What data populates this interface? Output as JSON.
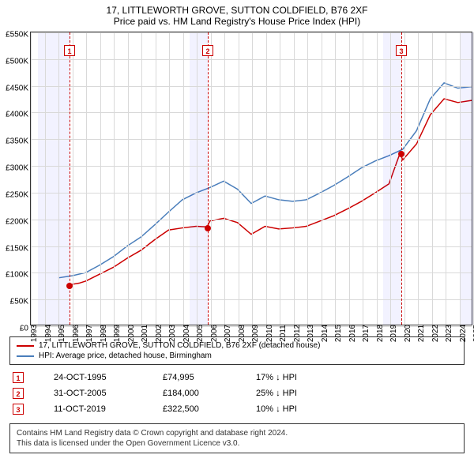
{
  "title": "17, LITTLEWORTH GROVE, SUTTON COLDFIELD, B76 2XF",
  "subtitle": "Price paid vs. HM Land Registry's House Price Index (HPI)",
  "chart": {
    "type": "line",
    "ylim": [
      0,
      550000
    ],
    "ytick_step": 50000,
    "ytick_labels": [
      "£0",
      "£50K",
      "£100K",
      "£150K",
      "£200K",
      "£250K",
      "£300K",
      "£350K",
      "£400K",
      "£450K",
      "£500K",
      "£550K"
    ],
    "xlim": [
      1993,
      2025
    ],
    "xticks": [
      1993,
      1994,
      1995,
      1996,
      1997,
      1998,
      1999,
      2000,
      2001,
      2002,
      2003,
      2004,
      2005,
      2006,
      2007,
      2008,
      2009,
      2010,
      2011,
      2012,
      2013,
      2014,
      2015,
      2016,
      2017,
      2018,
      2019,
      2020,
      2021,
      2022,
      2023,
      2024,
      2025
    ],
    "grid_color": "#d9d9d9",
    "background_color": "#ffffff",
    "title_fontsize": 12,
    "label_fontsize": 10,
    "shade_color": "rgba(0,0,255,0.05)",
    "shade_ranges": [
      [
        1993.5,
        1995.8
      ],
      [
        2004.5,
        2005.8
      ],
      [
        2018.5,
        2019.8
      ],
      [
        2024,
        2025
      ]
    ],
    "series": [
      {
        "name": "price_paid",
        "label": "17, LITTLEWORTH GROVE, SUTTON COLDFIELD, B76 2XF (detached house)",
        "color": "#cc0000",
        "line_width": 1.5,
        "data": [
          [
            1995.8,
            74995
          ],
          [
            1996.5,
            78000
          ],
          [
            1997,
            82000
          ],
          [
            1998,
            95000
          ],
          [
            1999,
            108000
          ],
          [
            2000,
            125000
          ],
          [
            2001,
            140000
          ],
          [
            2002,
            160000
          ],
          [
            2003,
            178000
          ],
          [
            2004,
            182000
          ],
          [
            2005,
            185000
          ],
          [
            2005.8,
            184000
          ],
          [
            2006,
            195000
          ],
          [
            2007,
            200000
          ],
          [
            2008,
            192000
          ],
          [
            2009,
            170000
          ],
          [
            2010,
            185000
          ],
          [
            2011,
            180000
          ],
          [
            2012,
            182000
          ],
          [
            2013,
            185000
          ],
          [
            2014,
            195000
          ],
          [
            2015,
            205000
          ],
          [
            2016,
            218000
          ],
          [
            2017,
            232000
          ],
          [
            2018,
            248000
          ],
          [
            2019,
            265000
          ],
          [
            2019.8,
            322500
          ],
          [
            2020,
            310000
          ],
          [
            2021,
            340000
          ],
          [
            2022,
            395000
          ],
          [
            2023,
            425000
          ],
          [
            2024,
            418000
          ],
          [
            2025,
            422000
          ]
        ]
      },
      {
        "name": "hpi",
        "label": "HPI: Average price, detached house, Birmingham",
        "color": "#4a7ebb",
        "line_width": 1.5,
        "data": [
          [
            1995,
            88000
          ],
          [
            1996,
            92000
          ],
          [
            1997,
            98000
          ],
          [
            1998,
            112000
          ],
          [
            1999,
            128000
          ],
          [
            2000,
            148000
          ],
          [
            2001,
            165000
          ],
          [
            2002,
            188000
          ],
          [
            2003,
            212000
          ],
          [
            2004,
            235000
          ],
          [
            2005,
            248000
          ],
          [
            2006,
            258000
          ],
          [
            2007,
            270000
          ],
          [
            2008,
            255000
          ],
          [
            2009,
            228000
          ],
          [
            2010,
            242000
          ],
          [
            2011,
            235000
          ],
          [
            2012,
            232000
          ],
          [
            2013,
            235000
          ],
          [
            2014,
            248000
          ],
          [
            2015,
            262000
          ],
          [
            2016,
            278000
          ],
          [
            2017,
            295000
          ],
          [
            2018,
            308000
          ],
          [
            2019,
            318000
          ],
          [
            2020,
            330000
          ],
          [
            2021,
            365000
          ],
          [
            2022,
            425000
          ],
          [
            2023,
            455000
          ],
          [
            2024,
            445000
          ],
          [
            2025,
            448000
          ]
        ]
      }
    ],
    "markers": [
      {
        "n": "1",
        "x": 1995.8,
        "y": 74995,
        "color": "#cc0000"
      },
      {
        "n": "2",
        "x": 2005.8,
        "y": 184000,
        "color": "#cc0000"
      },
      {
        "n": "3",
        "x": 2019.8,
        "y": 322500,
        "color": "#cc0000"
      }
    ]
  },
  "legend": {
    "items": [
      {
        "color": "#cc0000",
        "label": "17, LITTLEWORTH GROVE, SUTTON COLDFIELD, B76 2XF (detached house)"
      },
      {
        "color": "#4a7ebb",
        "label": "HPI: Average price, detached house, Birmingham"
      }
    ]
  },
  "sales": [
    {
      "n": "1",
      "color": "#cc0000",
      "date": "24-OCT-1995",
      "price": "£74,995",
      "diff": "17% ↓ HPI"
    },
    {
      "n": "2",
      "color": "#cc0000",
      "date": "31-OCT-2005",
      "price": "£184,000",
      "diff": "25% ↓ HPI"
    },
    {
      "n": "3",
      "color": "#cc0000",
      "date": "11-OCT-2019",
      "price": "£322,500",
      "diff": "10% ↓ HPI"
    }
  ],
  "footer": {
    "line1": "Contains HM Land Registry data © Crown copyright and database right 2024.",
    "line2": "This data is licensed under the Open Government Licence v3.0."
  }
}
